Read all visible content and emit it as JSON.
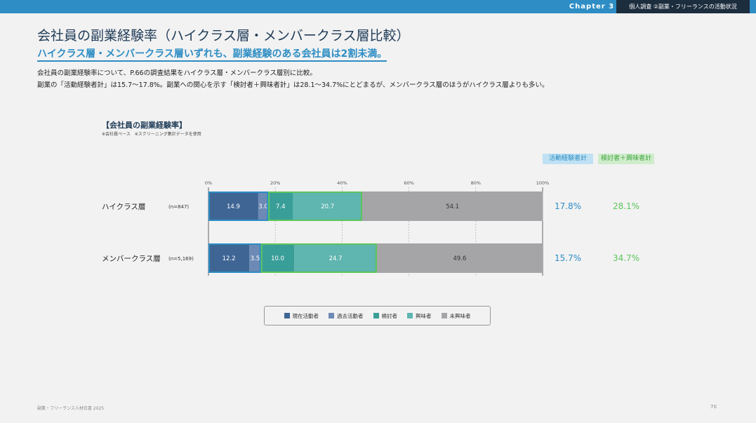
{
  "header": {
    "chapter": "Chapter 3",
    "section": "個人調査 ②副業・フリーランスの活動状況"
  },
  "title": "会社員の副業経験率（ハイクラス層・メンバークラス層比較）",
  "subtitle": "ハイクラス層・メンバークラス層いずれも、副業経験のある会社員は2割未満。",
  "description": [
    "会社員の副業経験率について、P.66の調査結果をハイクラス層・メンバークラス層別に比較。",
    "副業の「活動経験者計」は15.7〜17.8%。副業への関心を示す「検討者＋興味者計」は28.1〜34.7%にとどまるが、メンバークラス層のほうがハイクラス層よりも多い。"
  ],
  "chart_data": {
    "type": "bar",
    "orientation": "horizontal",
    "stacked": true,
    "title": "【会社員の副業経験率】",
    "note": "※会社員ベース　※スクリーニング集計データを使用",
    "x_ticks": [
      "0%",
      "20%",
      "40%",
      "60%",
      "80%",
      "100%"
    ],
    "xlim": [
      0,
      100
    ],
    "grid": true,
    "categories": [
      {
        "label": "ハイクラス層",
        "n": "(n=847)"
      },
      {
        "label": "メンバークラス層",
        "n": "(n=5,169)"
      }
    ],
    "series": [
      {
        "name": "現在活動者",
        "color": "#3e6594",
        "values": [
          14.9,
          12.2
        ]
      },
      {
        "name": "過去活動者",
        "color": "#6d89b5",
        "values": [
          3.0,
          3.5
        ]
      },
      {
        "name": "検討者",
        "color": "#3a9e98",
        "values": [
          7.4,
          10.0
        ]
      },
      {
        "name": "興味者",
        "color": "#5fb5b0",
        "values": [
          20.7,
          24.7
        ]
      },
      {
        "name": "未興味者",
        "color": "#a5a5a8",
        "values": [
          54.1,
          49.6
        ]
      }
    ],
    "summary_headers": {
      "active": "活動経験者計",
      "consider": "検討者＋興味者計"
    },
    "summary_active": [
      "17.8%",
      "15.7%"
    ],
    "summary_consider": [
      "28.1%",
      "34.7%"
    ],
    "colors": {
      "active_highlight": "#2d8dc4",
      "consider_highlight": "#5cc45c"
    },
    "legend_position": "bottom"
  },
  "footer": {
    "left": "副業・フリーランス人材白書 2025",
    "page": "70"
  }
}
